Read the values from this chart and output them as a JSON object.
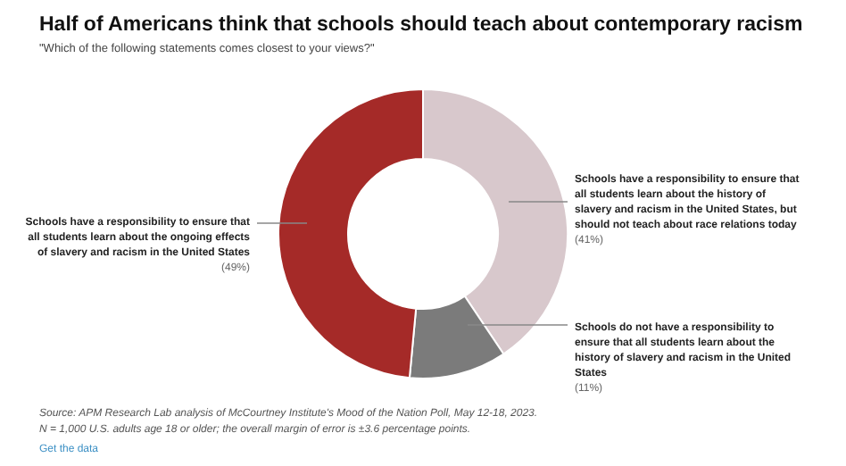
{
  "chart_data": {
    "type": "donut",
    "title": "Half of Americans think that schools should teach about contemporary racism",
    "subtitle": "\"Which of the following statements comes closest to your views?\"",
    "categories": [
      "Schools have a responsibility to ensure that all students learn about the history of slavery and racism in the United States, but should not teach about race relations today",
      "Schools do not have a responsibility to ensure that all students learn about the history of slavery and racism in the United States",
      "Schools have a responsibility to ensure that all students learn about the ongoing effects of slavery and racism in the United States"
    ],
    "values": [
      41,
      11,
      49
    ],
    "value_labels": [
      "(41%)",
      "(11%)",
      "(49%)"
    ],
    "colors": [
      "#d8c8cc",
      "#7b7b7b",
      "#a52a28"
    ],
    "annotations": [
      "Source: APM Research Lab analysis of McCourtney Institute's Mood of the Nation Poll, May 12-18, 2023.",
      "N = 1,000 U.S. adults age 18 or older; the overall margin of error is ±3.6 percentage points.",
      "Get the data"
    ]
  }
}
